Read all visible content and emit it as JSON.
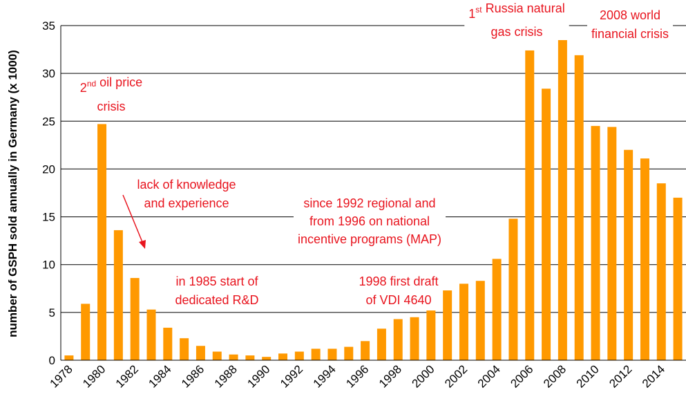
{
  "chart_data": {
    "type": "bar",
    "ylabel": "number of GSPH sold annually in Germany (x 1000)",
    "categories": [
      "1978",
      null,
      "1980",
      null,
      "1982",
      null,
      "1984",
      null,
      "1986",
      null,
      "1988",
      null,
      "1990",
      null,
      "1992",
      null,
      "1994",
      null,
      "1996",
      null,
      "1998",
      null,
      "2000",
      null,
      "2002",
      null,
      "2004",
      null,
      "2006",
      null,
      "2008",
      null,
      "2010",
      null,
      "2012",
      null,
      "2014",
      null
    ],
    "values": [
      0.5,
      5.9,
      24.7,
      13.6,
      8.6,
      5.3,
      3.4,
      2.3,
      1.5,
      0.9,
      0.6,
      0.5,
      0.35,
      0.7,
      0.9,
      1.2,
      1.2,
      1.4,
      2.0,
      3.3,
      4.3,
      4.5,
      5.2,
      7.3,
      8.0,
      8.3,
      10.6,
      14.8,
      32.4,
      28.4,
      34.5,
      31.9,
      24.5,
      24.4,
      22.0,
      21.1,
      18.5,
      17.0
    ],
    "color": "#ff9900",
    "ylim": [
      0,
      35
    ],
    "yticks": [
      0,
      5,
      10,
      15,
      20,
      25,
      30,
      35
    ],
    "grid": true,
    "annotations": [
      {
        "lines": [
          [
            "2",
            {
              "sup": "nd"
            },
            " oil price"
          ],
          [
            "crisis"
          ]
        ]
      },
      {
        "lines": [
          [
            "lack of knowledge"
          ],
          [
            "and experience"
          ]
        ]
      },
      {
        "lines": [
          [
            "in 1985 start of"
          ],
          [
            "dedicated R&D"
          ]
        ]
      },
      {
        "lines": [
          [
            "since 1992 regional and"
          ],
          [
            "from 1996 on national"
          ],
          [
            "incentive programs (MAP)"
          ]
        ]
      },
      {
        "lines": [
          [
            "1998 first draft"
          ],
          [
            "of VDI 4640"
          ]
        ]
      },
      {
        "lines": [
          [
            "1",
            {
              "sup": "st"
            },
            " Russia natural"
          ],
          [
            "gas crisis"
          ]
        ]
      },
      {
        "lines": [
          [
            "2008 world"
          ],
          [
            "financial crisis"
          ]
        ]
      }
    ]
  }
}
